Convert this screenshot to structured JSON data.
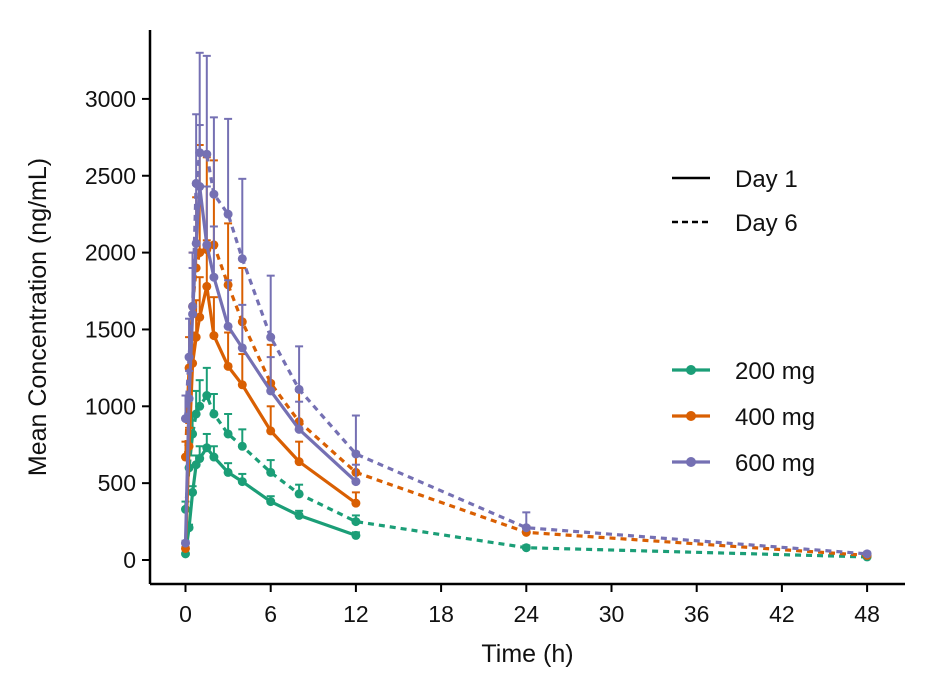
{
  "chart_data": {
    "type": "line",
    "xlabel": "Time (h)",
    "ylabel": "Mean Concentration (ng/mL)",
    "xlim": [
      -2,
      50
    ],
    "ylim": [
      -150,
      3450
    ],
    "xticks": [
      0,
      6,
      12,
      18,
      24,
      30,
      36,
      42,
      48
    ],
    "yticks": [
      0,
      500,
      1000,
      1500,
      2000,
      2500,
      3000
    ],
    "legend_linetype": [
      {
        "label": "Day 1",
        "style": "solid"
      },
      {
        "label": "Day 6",
        "style": "dashed"
      }
    ],
    "legend_dose": [
      {
        "label": "200 mg",
        "color": "#1b9e77"
      },
      {
        "label": "400 mg",
        "color": "#d95f02"
      },
      {
        "label": "600 mg",
        "color": "#7570b3"
      }
    ],
    "series": [
      {
        "dose": "200 mg",
        "day": "Day 1",
        "color": "#1b9e77",
        "style": "solid",
        "x": [
          0,
          0.25,
          0.5,
          0.75,
          1,
          1.5,
          2,
          3,
          4,
          6,
          8,
          12
        ],
        "y": [
          40,
          210,
          440,
          620,
          660,
          730,
          670,
          570,
          510,
          380,
          290,
          160
        ],
        "err": [
          5,
          20,
          40,
          60,
          80,
          90,
          70,
          60,
          50,
          35,
          30,
          20
        ]
      },
      {
        "dose": "200 mg",
        "day": "Day 6",
        "color": "#1b9e77",
        "style": "dashed",
        "x": [
          0,
          0.25,
          0.5,
          0.75,
          1,
          1.5,
          2,
          3,
          4,
          6,
          8,
          12,
          24,
          48
        ],
        "y": [
          330,
          600,
          820,
          950,
          1000,
          1070,
          950,
          820,
          740,
          570,
          430,
          250,
          80,
          20
        ],
        "err": [
          50,
          80,
          120,
          150,
          170,
          180,
          130,
          130,
          110,
          80,
          60,
          40,
          15,
          5
        ]
      },
      {
        "dose": "400 mg",
        "day": "Day 1",
        "color": "#d95f02",
        "style": "solid",
        "x": [
          0,
          0.25,
          0.5,
          0.75,
          1,
          1.5,
          2,
          3,
          4,
          6,
          8,
          12
        ],
        "y": [
          75,
          740,
          1280,
          1450,
          1580,
          1780,
          1460,
          1260,
          1140,
          840,
          640,
          370
        ],
        "err": [
          10,
          120,
          200,
          240,
          260,
          300,
          250,
          220,
          200,
          160,
          130,
          70
        ]
      },
      {
        "dose": "400 mg",
        "day": "Day 6",
        "color": "#d95f02",
        "style": "dashed",
        "x": [
          0,
          0.25,
          0.5,
          0.75,
          1,
          1.5,
          2,
          3,
          4,
          6,
          8,
          12,
          24,
          48
        ],
        "y": [
          670,
          1250,
          1650,
          1900,
          2000,
          2020,
          2050,
          1790,
          1550,
          1150,
          900,
          570,
          180,
          30
        ],
        "err": [
          100,
          200,
          350,
          460,
          700,
          600,
          550,
          400,
          350,
          250,
          200,
          130,
          40,
          8
        ]
      },
      {
        "dose": "600 mg",
        "day": "Day 1",
        "color": "#7570b3",
        "style": "solid",
        "x": [
          0,
          0.25,
          0.5,
          0.75,
          1,
          1.5,
          2,
          3,
          4,
          6,
          8,
          12
        ],
        "y": [
          110,
          1050,
          1600,
          2060,
          2430,
          2050,
          1840,
          1520,
          1380,
          1100,
          850,
          510
        ],
        "err": [
          15,
          180,
          300,
          380,
          400,
          380,
          330,
          300,
          280,
          220,
          180,
          110
        ]
      },
      {
        "dose": "600 mg",
        "day": "Day 6",
        "color": "#7570b3",
        "style": "dashed",
        "x": [
          0,
          0.25,
          0.5,
          0.75,
          1,
          1.5,
          2,
          3,
          4,
          6,
          8,
          12,
          24,
          48
        ],
        "y": [
          920,
          1320,
          1650,
          2450,
          2650,
          2640,
          2380,
          2250,
          1960,
          1450,
          1110,
          690,
          210,
          40
        ],
        "err": [
          150,
          250,
          350,
          450,
          650,
          640,
          500,
          620,
          520,
          400,
          280,
          250,
          100,
          10
        ]
      }
    ]
  }
}
